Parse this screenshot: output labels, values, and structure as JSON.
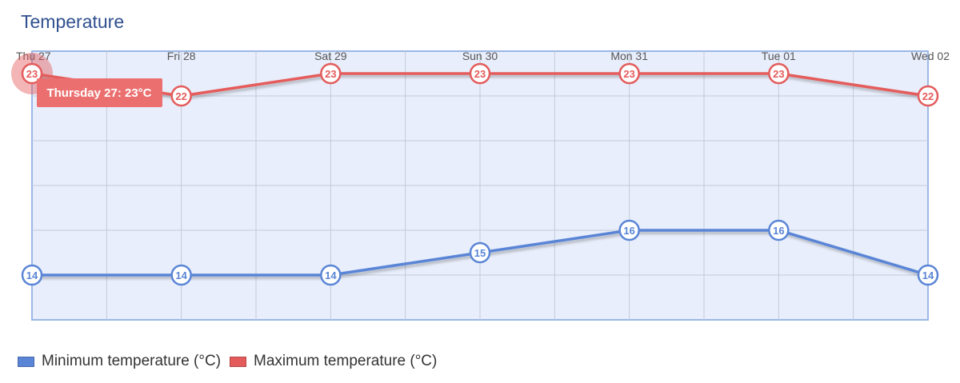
{
  "chart_data": {
    "type": "line",
    "title": "Temperature",
    "categories": [
      "Thu 27",
      "Fri 28",
      "Sat 29",
      "Sun 30",
      "Mon 31",
      "Tue 01",
      "Wed 02"
    ],
    "series": [
      {
        "name": "Minimum temperature (°C)",
        "values": [
          14,
          14,
          14,
          15,
          16,
          16,
          14
        ],
        "color": "#5a85d6"
      },
      {
        "name": "Maximum temperature (°C)",
        "values": [
          23,
          22,
          23,
          23,
          23,
          23,
          22
        ],
        "color": "#e45b5b"
      }
    ],
    "ylim": [
      12,
      23
    ],
    "grid": true,
    "legend_position": "bottom-left",
    "plot_background": "#e8eefb",
    "tooltip": {
      "text": "Thursday 27:  23°C",
      "color": "#ec6f6f"
    }
  }
}
